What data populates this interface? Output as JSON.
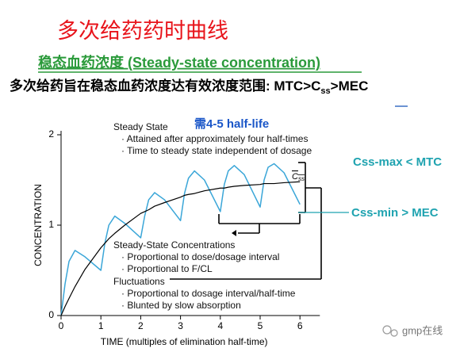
{
  "title": "多次给药药时曲线",
  "subtitle": "稳态血药浓度 (Steady-state concentration)",
  "statement": {
    "main": "多次给药旨在稳态血药浓度达有效浓度范围: MTC>C",
    "sub": "ss",
    "tail": ">MEC"
  },
  "chart_data": {
    "type": "line",
    "x": [
      0,
      0.1,
      0.2,
      0.35,
      0.6,
      1,
      1.1,
      1.2,
      1.35,
      1.6,
      2,
      2.1,
      2.2,
      2.35,
      2.6,
      3,
      3.1,
      3.2,
      3.35,
      3.6,
      4,
      4.1,
      4.2,
      4.35,
      4.6,
      5,
      5.1,
      5.2,
      5.35,
      5.6,
      6
    ],
    "series": [
      {
        "color": "#3aa6d8",
        "values": [
          0,
          0.35,
          0.6,
          0.72,
          0.65,
          0.5,
          0.8,
          1.0,
          1.1,
          1.02,
          0.86,
          1.1,
          1.28,
          1.36,
          1.28,
          1.05,
          1.35,
          1.52,
          1.6,
          1.5,
          1.15,
          1.45,
          1.6,
          1.66,
          1.56,
          1.2,
          1.5,
          1.64,
          1.68,
          1.58,
          1.23
        ]
      },
      {
        "color": "#000000",
        "values": [
          0,
          0.1,
          0.19,
          0.32,
          0.51,
          0.75,
          0.8,
          0.85,
          0.91,
          1.0,
          1.13,
          1.15,
          1.17,
          1.21,
          1.25,
          1.31,
          1.33,
          1.34,
          1.35,
          1.38,
          1.41,
          1.41,
          1.42,
          1.43,
          1.44,
          1.45,
          1.46,
          1.46,
          1.46,
          1.47,
          1.48
        ]
      }
    ],
    "xlim": [
      0,
      6.5
    ],
    "ylim": [
      0,
      2
    ],
    "xticks": [
      0,
      1,
      2,
      3,
      4,
      5,
      6
    ],
    "yticks": [
      0,
      1,
      2
    ],
    "xlabel": "TIME (multiples of elimination half-time)",
    "ylabel": "CONCENTRATION",
    "note": "需4-5 half-life",
    "css_label": {
      "main": "C",
      "sub": "ss"
    },
    "annotations": [
      "Steady State",
      "· Attained after approximately four half-times",
      "· Time to steady state independent of dosage",
      "Steady-State Concentrations",
      "· Proportional to dose/dosage interval",
      "· Proportional to F/CL",
      "Fluctuations",
      "· Proportional to dosage interval/half-time",
      "· Blunted by slow absorption"
    ]
  },
  "side_labels": [
    "Css-max < MTC",
    "Css-min > MEC"
  ],
  "watermark": "gmp在线"
}
